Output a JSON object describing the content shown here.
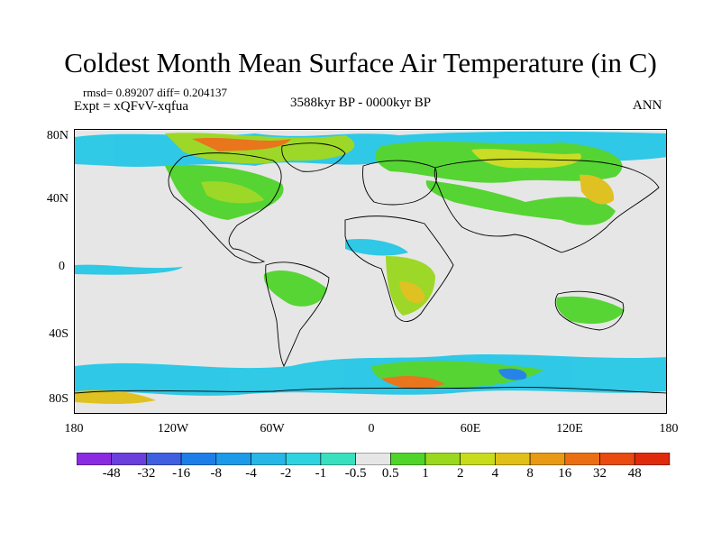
{
  "title": "Coldest Month Mean Surface Air Temperature (in C)",
  "stats": {
    "rmsd_text": "rmsd= 0.89207 diff= 0.204137"
  },
  "experiment": "Expt = xQFvV-xqfua",
  "period": "3588kyr BP - 0000kyr BP",
  "season": "ANN",
  "y_axis": {
    "ticks": [
      "80N",
      "40N",
      "0",
      "40S",
      "80S"
    ]
  },
  "x_axis": {
    "ticks": [
      "180",
      "120W",
      "60W",
      "0",
      "60E",
      "120E",
      "180"
    ]
  },
  "colorbar": {
    "labels": [
      "-48",
      "-32",
      "-16",
      "-8",
      "-4",
      "-2",
      "-1",
      "-0.5",
      "0.5",
      "1",
      "2",
      "4",
      "8",
      "16",
      "32",
      "48"
    ],
    "colors": [
      "#8a2be2",
      "#6a3fdc",
      "#3f5fe0",
      "#1e7ee8",
      "#1c9ae8",
      "#26b7e6",
      "#2fd3e0",
      "#39e0c0",
      "#e6e6e6",
      "#4fd42a",
      "#9ad81e",
      "#c8dc1c",
      "#e0c018",
      "#e89a14",
      "#ea6f12",
      "#e84a10",
      "#e02a0c"
    ]
  }
}
